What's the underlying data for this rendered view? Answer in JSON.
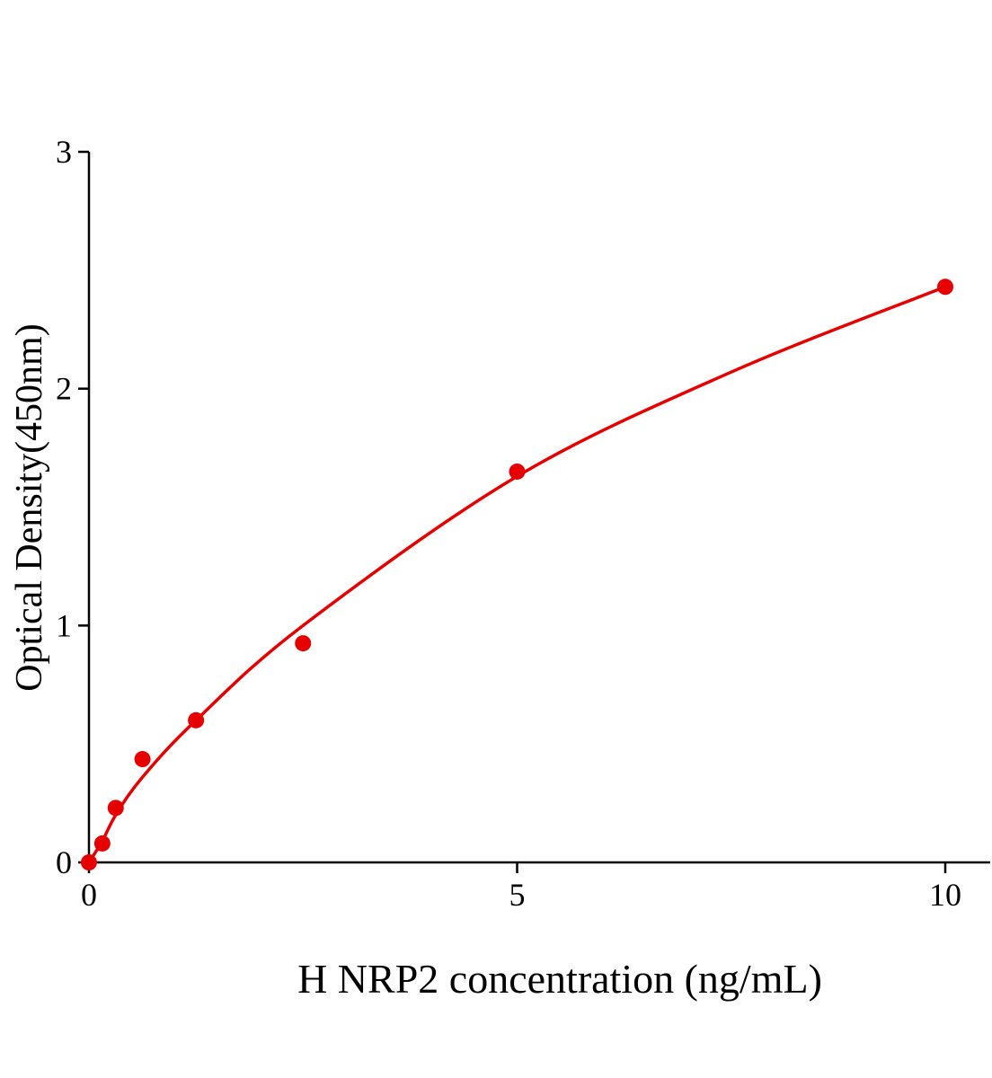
{
  "chart_data": {
    "type": "scatter",
    "xlabel": "H NRP2 concentration (ng/mL)",
    "ylabel": "Optical Density(450nm)",
    "xlim": [
      0,
      10.5
    ],
    "ylim": [
      0,
      3
    ],
    "xticks": [
      0,
      5,
      10
    ],
    "yticks": [
      0,
      1,
      2,
      3
    ],
    "grid": false,
    "color": "#e60000",
    "points": {
      "x": [
        0,
        0.156,
        0.3125,
        0.625,
        1.25,
        2.5,
        5,
        10
      ],
      "y": [
        0,
        0.08,
        0.23,
        0.436,
        0.6,
        0.925,
        1.65,
        2.43
      ]
    },
    "fit_curve": {
      "x": [
        0,
        0.156,
        0.3125,
        0.625,
        1.25,
        2.5,
        5,
        7.5,
        10
      ],
      "y": [
        0,
        0.09,
        0.2,
        0.36,
        0.6,
        1.0,
        1.63,
        2.07,
        2.43
      ]
    }
  }
}
